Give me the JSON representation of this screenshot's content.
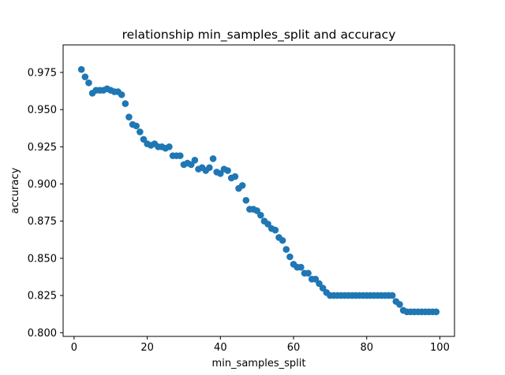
{
  "chart_data": {
    "type": "scatter",
    "title": "relationship min_samples_split  and accuracy",
    "xlabel": "min_samples_split",
    "ylabel": "accuracy",
    "xlim": [
      -3,
      104
    ],
    "ylim": [
      0.7975,
      0.9935
    ],
    "xticks": [
      0,
      20,
      40,
      60,
      80,
      100
    ],
    "xtick_labels": [
      "0",
      "20",
      "40",
      "60",
      "80",
      "100"
    ],
    "yticks": [
      0.8,
      0.825,
      0.85,
      0.875,
      0.9,
      0.925,
      0.95,
      0.975
    ],
    "ytick_labels": [
      "0.800",
      "0.825",
      "0.850",
      "0.875",
      "0.900",
      "0.925",
      "0.950",
      "0.975"
    ],
    "grid": false,
    "marker_color": "#1f77b4",
    "x": [
      2,
      3,
      4,
      5,
      6,
      7,
      8,
      9,
      10,
      11,
      12,
      13,
      14,
      15,
      16,
      17,
      18,
      19,
      20,
      21,
      22,
      23,
      24,
      25,
      26,
      27,
      28,
      29,
      30,
      31,
      32,
      33,
      34,
      35,
      36,
      37,
      38,
      39,
      40,
      41,
      42,
      43,
      44,
      45,
      46,
      47,
      48,
      49,
      50,
      51,
      52,
      53,
      54,
      55,
      56,
      57,
      58,
      59,
      60,
      61,
      62,
      63,
      64,
      65,
      66,
      67,
      68,
      69,
      70,
      71,
      72,
      73,
      74,
      75,
      76,
      77,
      78,
      79,
      80,
      81,
      82,
      83,
      84,
      85,
      86,
      87,
      88,
      89,
      90,
      91,
      92,
      93,
      94,
      95,
      96,
      97,
      98,
      99
    ],
    "y": [
      0.977,
      0.972,
      0.968,
      0.961,
      0.963,
      0.963,
      0.963,
      0.964,
      0.963,
      0.962,
      0.962,
      0.96,
      0.954,
      0.945,
      0.94,
      0.939,
      0.935,
      0.93,
      0.927,
      0.926,
      0.927,
      0.925,
      0.925,
      0.924,
      0.925,
      0.919,
      0.919,
      0.919,
      0.913,
      0.914,
      0.913,
      0.916,
      0.91,
      0.911,
      0.909,
      0.911,
      0.917,
      0.908,
      0.907,
      0.91,
      0.909,
      0.904,
      0.905,
      0.897,
      0.899,
      0.889,
      0.883,
      0.883,
      0.882,
      0.879,
      0.875,
      0.873,
      0.87,
      0.869,
      0.864,
      0.862,
      0.856,
      0.851,
      0.846,
      0.844,
      0.844,
      0.84,
      0.84,
      0.836,
      0.836,
      0.833,
      0.83,
      0.827,
      0.825,
      0.825,
      0.825,
      0.825,
      0.825,
      0.825,
      0.825,
      0.825,
      0.825,
      0.825,
      0.825,
      0.825,
      0.825,
      0.825,
      0.825,
      0.825,
      0.825,
      0.825,
      0.821,
      0.819,
      0.815,
      0.814,
      0.814,
      0.814,
      0.814,
      0.814,
      0.814,
      0.814,
      0.814,
      0.814
    ]
  }
}
